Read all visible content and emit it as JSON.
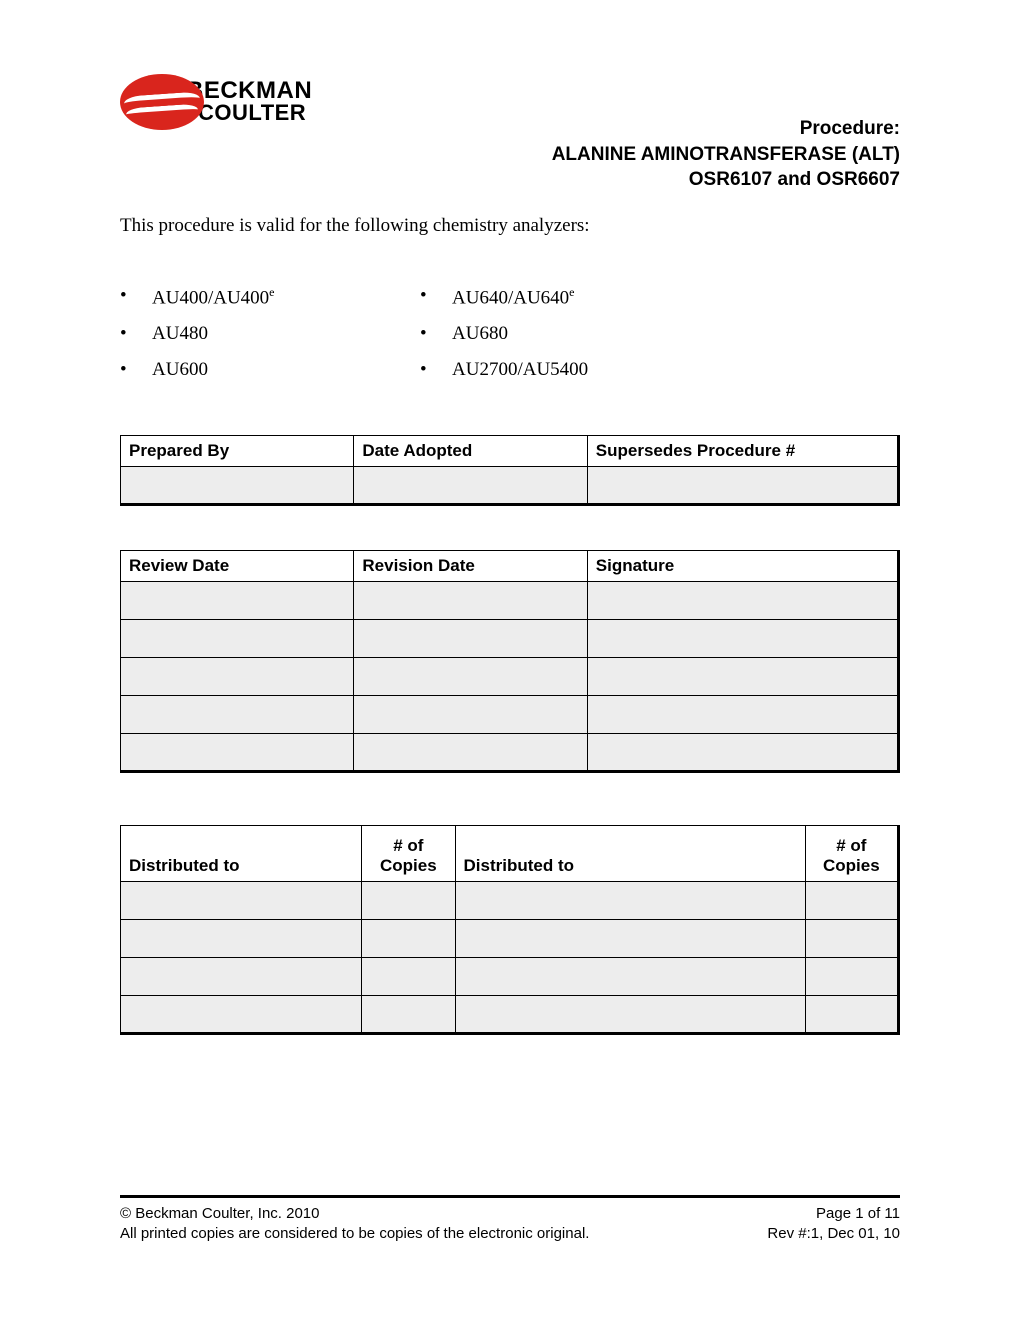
{
  "brand": {
    "line1": "BECKMAN",
    "line2": "COULTER"
  },
  "title": {
    "line1": "Procedure:",
    "line2": "ALANINE AMINOTRANSFERASE (ALT)",
    "line3": "OSR6107 and OSR6607"
  },
  "intro": "This procedure is valid for the following chemistry analyzers:",
  "analyzers": {
    "colA": [
      {
        "text": "AU400/AU400",
        "sup": "e"
      },
      {
        "text": "AU480",
        "sup": ""
      },
      {
        "text": "AU600",
        "sup": ""
      }
    ],
    "colB": [
      {
        "text": "AU640/AU640",
        "sup": "e"
      },
      {
        "text": "AU680",
        "sup": ""
      },
      {
        "text": "AU2700/AU5400",
        "sup": ""
      }
    ]
  },
  "table1": {
    "headers": [
      "Prepared By",
      "Date Adopted",
      "Supersedes Procedure #"
    ],
    "rows": 1,
    "col_widths_pct": [
      30,
      30,
      40
    ]
  },
  "table2": {
    "headers": [
      "Review Date",
      "Revision Date",
      "Signature"
    ],
    "rows": 5,
    "col_widths_pct": [
      30,
      30,
      40
    ]
  },
  "table3": {
    "headers": [
      "Distributed to",
      "# of\nCopies",
      "Distributed to",
      "# of\nCopies"
    ],
    "rows": 4,
    "col_widths_pct": [
      31,
      12,
      45,
      12
    ]
  },
  "footer": {
    "left1": "© Beckman Coulter, Inc. 2010",
    "right1": "Page 1 of 11",
    "left2": "All printed copies are considered to be copies of the electronic original.",
    "right2": "Rev #:1, Dec 01, 10"
  },
  "colors": {
    "brand_red": "#d9251d",
    "cell_fill": "#ededed",
    "text": "#000000",
    "background": "#ffffff"
  }
}
